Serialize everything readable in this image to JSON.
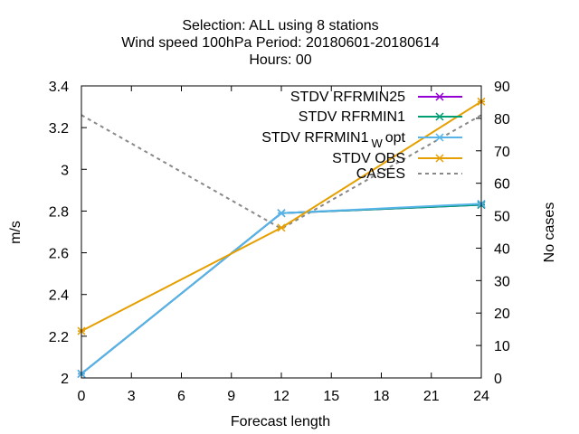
{
  "chart_data": {
    "type": "line",
    "title_lines": [
      "Selection: ALL using     8 stations",
      "Wind speed 100hPa   Period: 20180601-20180614",
      "Hours:  00"
    ],
    "xlabel": "Forecast length",
    "ylabel": "m/s",
    "y2label": "No cases",
    "x_ticks": [
      0,
      3,
      6,
      9,
      12,
      15,
      18,
      21,
      24
    ],
    "y_ticks": [
      2,
      2.2,
      2.4,
      2.6,
      2.8,
      3,
      3.2,
      3.4
    ],
    "y2_ticks": [
      0,
      10,
      20,
      30,
      40,
      50,
      60,
      70,
      80,
      90
    ],
    "xlim": [
      0,
      24
    ],
    "ylim": [
      2,
      3.4
    ],
    "y2lim": [
      0,
      90
    ],
    "legend_position": "top-right",
    "grid": false,
    "series": [
      {
        "name": "STDV RFRMIN25",
        "color": "#9400d3",
        "axis": "y",
        "marker": "x",
        "x": [
          0,
          12,
          24
        ],
        "y": [
          2.02,
          2.79,
          2.83
        ]
      },
      {
        "name": "STDV RFRMIN1",
        "color": "#009e73",
        "axis": "y",
        "marker": "x",
        "x": [
          0,
          12,
          24
        ],
        "y": [
          2.02,
          2.79,
          2.83
        ]
      },
      {
        "name_main": "STDV RFRMIN1",
        "name_sub": "W",
        "name_tail": "opt",
        "color": "#56b4e9",
        "axis": "y",
        "marker": "x",
        "x": [
          0,
          12,
          24
        ],
        "y": [
          2.02,
          2.79,
          2.835
        ]
      },
      {
        "name": "STDV OBS",
        "color": "#e69f00",
        "axis": "y",
        "marker": "x",
        "x": [
          0,
          12,
          24
        ],
        "y": [
          2.225,
          2.72,
          3.325
        ]
      },
      {
        "name": "CASES",
        "color": "#888888",
        "axis": "y2",
        "dashed": true,
        "x": [
          0,
          12,
          24
        ],
        "y": [
          81,
          46,
          81
        ]
      }
    ]
  }
}
